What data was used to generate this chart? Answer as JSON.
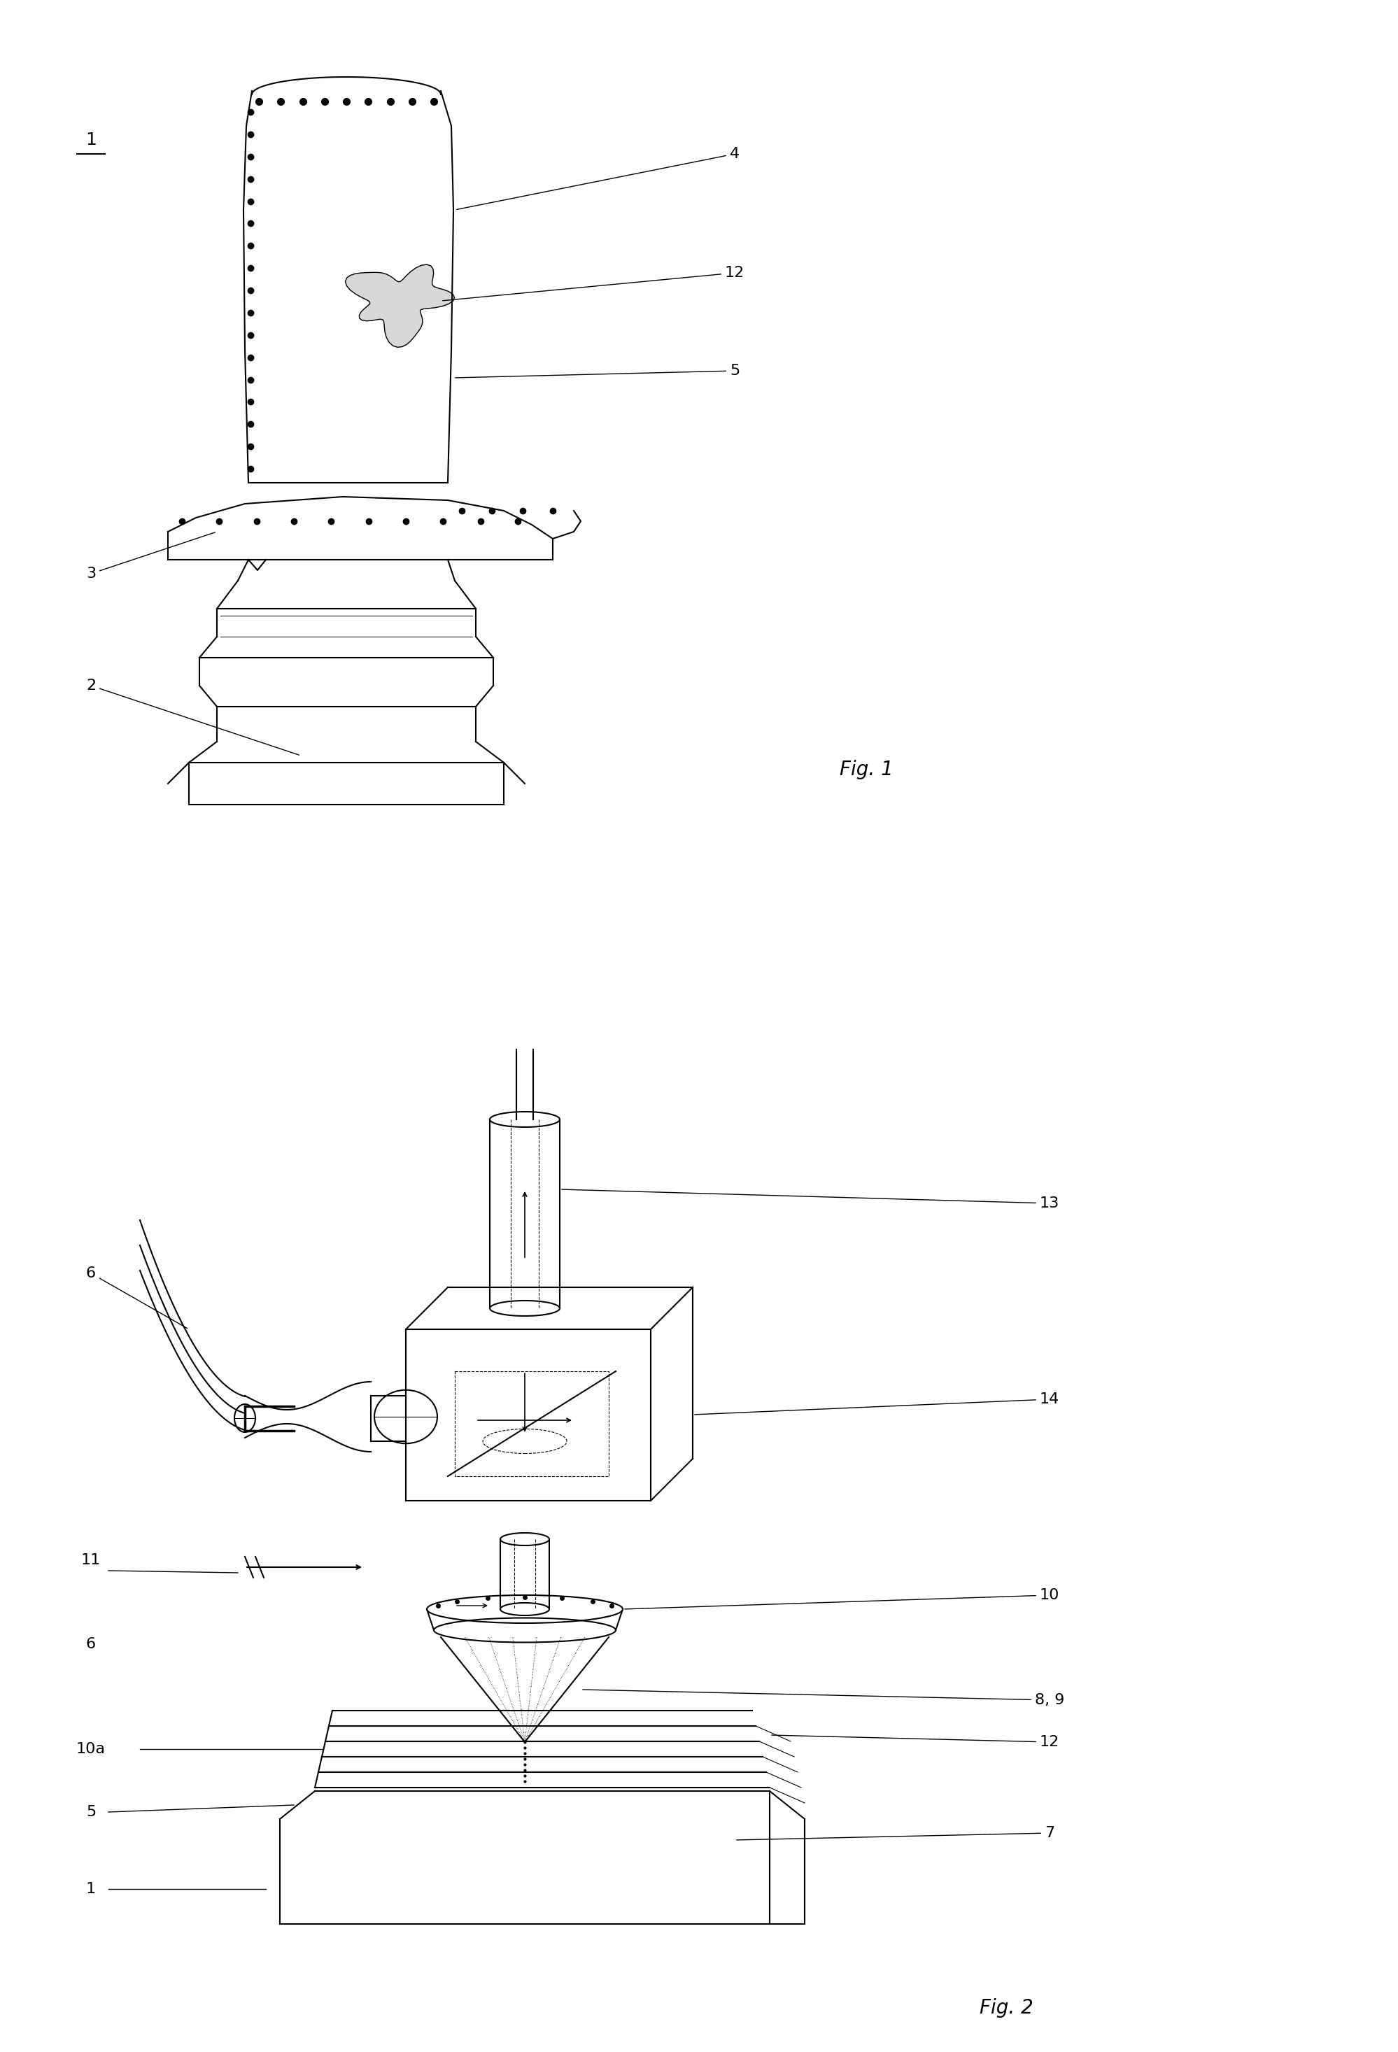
{
  "bg": "#ffffff",
  "lc": "#000000",
  "fig1_title": "Fig. 1",
  "fig2_title": "Fig. 2",
  "label_fs": 16,
  "fig_title_fs": 20,
  "lw": 1.5
}
